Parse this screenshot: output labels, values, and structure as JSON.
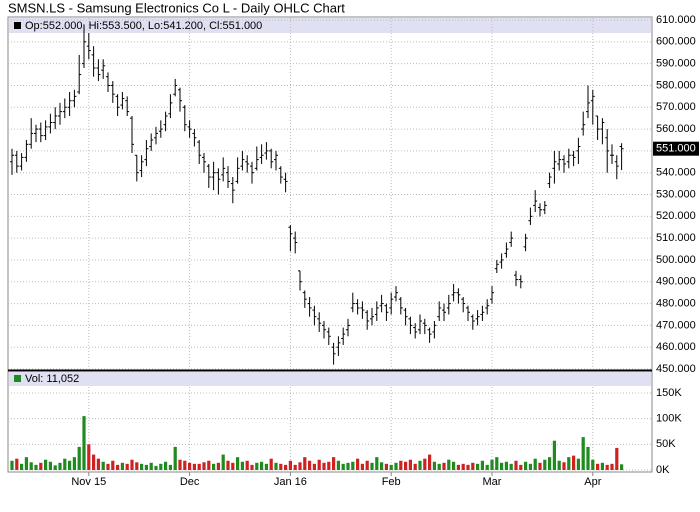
{
  "chart_data": {
    "type": "ohlc",
    "title": "SMSN.LS - Samsung Electronics Co L - Daily OHLC Chart",
    "ohlc_legend": "Op:552.000, Hi:553.500, Lo:541.200, Cl:551.000",
    "volume_legend": "Vol: 11,052",
    "last_price": {
      "value": 551,
      "label": "551.000"
    },
    "categories": [
      null,
      null,
      null,
      null,
      null,
      null,
      null,
      null,
      null,
      null,
      null,
      null,
      null,
      null,
      null,
      null,
      "Nov 15",
      null,
      null,
      null,
      null,
      null,
      null,
      null,
      null,
      null,
      null,
      null,
      null,
      null,
      null,
      null,
      null,
      null,
      null,
      null,
      null,
      "Dec",
      null,
      null,
      null,
      null,
      null,
      null,
      null,
      null,
      null,
      null,
      null,
      null,
      null,
      null,
      null,
      null,
      null,
      null,
      null,
      null,
      "Jan 16",
      null,
      null,
      null,
      null,
      null,
      null,
      null,
      null,
      null,
      null,
      null,
      null,
      null,
      null,
      null,
      null,
      null,
      null,
      null,
      null,
      "Feb",
      null,
      null,
      null,
      null,
      null,
      null,
      null,
      null,
      null,
      null,
      null,
      null,
      null,
      null,
      null,
      null,
      null,
      null,
      null,
      null,
      "Mar",
      null,
      null,
      null,
      null,
      null,
      null,
      null,
      null,
      null,
      null,
      null,
      null,
      null,
      null,
      null,
      null,
      null,
      null,
      null,
      null,
      "Apr",
      null,
      null,
      null,
      null,
      null,
      null
    ],
    "open": [
      545,
      548,
      543,
      547,
      553,
      558,
      560,
      557,
      561,
      563,
      566,
      568,
      570,
      573,
      577,
      590,
      598,
      594,
      588,
      587,
      584,
      580,
      575,
      571,
      573,
      565,
      548,
      541,
      546,
      552,
      556,
      559,
      562,
      567,
      576,
      578,
      570,
      561,
      558,
      554,
      547,
      543,
      538,
      540,
      539,
      540,
      535,
      536,
      543,
      545,
      543,
      542,
      547,
      549,
      550,
      546,
      542,
      537,
      515,
      510,
      495,
      485,
      480,
      477,
      473,
      470,
      467,
      460,
      460,
      464,
      468,
      478,
      480,
      478,
      476,
      473,
      475,
      479,
      479,
      478,
      483,
      482,
      477,
      473,
      469,
      468,
      471,
      468,
      467,
      474,
      477,
      478,
      484,
      485,
      482,
      478,
      474,
      473,
      475,
      478,
      482,
      496,
      499,
      503,
      508,
      493,
      491,
      506,
      518,
      525,
      524,
      523,
      535,
      542,
      544,
      546,
      545,
      548,
      550,
      560,
      568,
      573,
      566,
      560,
      556,
      548,
      545,
      552
    ],
    "high": [
      551,
      550,
      549,
      555,
      565,
      562,
      563,
      564,
      567,
      570,
      572,
      574,
      577,
      578,
      594,
      608,
      604,
      598,
      592,
      592,
      586,
      582,
      576,
      577,
      575,
      566,
      548,
      548,
      555,
      558,
      561,
      564,
      568,
      576,
      583,
      579,
      571,
      564,
      560,
      555,
      549,
      544,
      545,
      542,
      547,
      543,
      538,
      547,
      550,
      548,
      545,
      552,
      553,
      554,
      551,
      550,
      543,
      540,
      516,
      513,
      495,
      486,
      483,
      479,
      476,
      472,
      469,
      462,
      465,
      469,
      473,
      485,
      482,
      481,
      477,
      478,
      481,
      484,
      480,
      485,
      488,
      483,
      478,
      474,
      471,
      475,
      473,
      469,
      472,
      481,
      480,
      484,
      489,
      487,
      483,
      479,
      475,
      477,
      479,
      482,
      488,
      500,
      503,
      508,
      513,
      495,
      493,
      512,
      524,
      532,
      526,
      527,
      540,
      550,
      550,
      548,
      551,
      550,
      556,
      568,
      580,
      578,
      566,
      565,
      560,
      553,
      548,
      553.5
    ],
    "low": [
      539,
      540,
      541,
      545,
      551,
      554,
      554,
      555,
      558,
      560,
      562,
      565,
      566,
      570,
      576,
      588,
      592,
      584,
      582,
      583,
      577,
      572,
      566,
      569,
      566,
      549,
      536,
      538,
      543,
      550,
      553,
      556,
      559,
      565,
      575,
      568,
      559,
      556,
      552,
      544,
      540,
      533,
      532,
      530,
      536,
      533,
      526,
      535,
      541,
      540,
      535,
      541,
      544,
      546,
      542,
      541,
      535,
      531,
      504,
      503,
      486,
      478,
      474,
      470,
      467,
      464,
      461,
      452,
      456,
      461,
      465,
      476,
      475,
      473,
      468,
      470,
      472,
      476,
      472,
      475,
      481,
      475,
      470,
      466,
      464,
      466,
      466,
      462,
      464,
      472,
      472,
      475,
      481,
      480,
      476,
      472,
      468,
      470,
      472,
      475,
      480,
      494,
      496,
      501,
      506,
      488,
      487,
      504,
      516,
      522,
      520,
      521,
      533,
      535,
      541,
      540,
      542,
      543,
      544,
      557,
      565,
      562,
      555,
      553,
      540,
      544,
      537,
      541.2
    ],
    "close": [
      548,
      543,
      547,
      553,
      558,
      560,
      557,
      561,
      563,
      566,
      568,
      570,
      573,
      575,
      585,
      600,
      596,
      588,
      585,
      589,
      580,
      576,
      570,
      574,
      568,
      553,
      540,
      545,
      551,
      555,
      558,
      560,
      566,
      572,
      580,
      573,
      562,
      560,
      556,
      548,
      545,
      538,
      540,
      537,
      542,
      536,
      532,
      542,
      546,
      544,
      540,
      546,
      548,
      550,
      545,
      548,
      538,
      536,
      512,
      508,
      490,
      482,
      478,
      474,
      471,
      468,
      465,
      457,
      462,
      466,
      470,
      480,
      478,
      477,
      472,
      474,
      478,
      480,
      476,
      482,
      485,
      478,
      474,
      470,
      467,
      472,
      470,
      466,
      470,
      478,
      476,
      480,
      485,
      484,
      480,
      476,
      472,
      474,
      476,
      479,
      485,
      498,
      500,
      505,
      510,
      491,
      490,
      510,
      520,
      527,
      523,
      525,
      538,
      545,
      546,
      544,
      548,
      547,
      552,
      562,
      572,
      575,
      560,
      563,
      550,
      548,
      543,
      551
    ],
    "volume": [
      18000,
      22000,
      12000,
      25000,
      15000,
      10000,
      14000,
      20000,
      16000,
      9000,
      14000,
      22000,
      18000,
      25000,
      45000,
      105000,
      50000,
      30000,
      22000,
      16000,
      12000,
      18000,
      10000,
      14000,
      12000,
      20000,
      15000,
      12000,
      10000,
      14000,
      8000,
      12000,
      16000,
      10000,
      45000,
      20000,
      18000,
      14000,
      12000,
      12000,
      15000,
      18000,
      12000,
      14000,
      30000,
      18000,
      14000,
      25000,
      16000,
      18000,
      10000,
      14000,
      16000,
      12000,
      22000,
      14000,
      12000,
      10000,
      18000,
      10000,
      15000,
      25000,
      18000,
      12000,
      20000,
      14000,
      16000,
      25000,
      18000,
      12000,
      14000,
      16000,
      22000,
      12000,
      18000,
      14000,
      25000,
      15000,
      12000,
      10000,
      14000,
      18000,
      16000,
      20000,
      12000,
      18000,
      22000,
      30000,
      16000,
      12000,
      14000,
      20000,
      16000,
      10000,
      12000,
      10000,
      14000,
      12000,
      18000,
      10000,
      20000,
      25000,
      14000,
      16000,
      12000,
      18000,
      10000,
      16000,
      12000,
      22000,
      14000,
      20000,
      25000,
      57000,
      18000,
      15000,
      25000,
      28000,
      22000,
      64000,
      45000,
      20000,
      12000,
      14000,
      10000,
      12000,
      43000,
      11052
    ],
    "up_color": "#1f8a1f",
    "down_color": "#cc2222",
    "bar_color": "#000000",
    "grid": true,
    "ylim": [
      450,
      610
    ],
    "yticks": [
      {
        "value": 450,
        "label": "450.000"
      },
      {
        "value": 460,
        "label": "460.000"
      },
      {
        "value": 470,
        "label": "470.000"
      },
      {
        "value": 480,
        "label": "480.000"
      },
      {
        "value": 490,
        "label": "490.000"
      },
      {
        "value": 500,
        "label": "500.000"
      },
      {
        "value": 510,
        "label": "510.000"
      },
      {
        "value": 520,
        "label": "520.000"
      },
      {
        "value": 530,
        "label": "530.000"
      },
      {
        "value": 540,
        "label": "540.000"
      },
      {
        "value": 550,
        "label": "550.000"
      },
      {
        "value": 560,
        "label": "560.000"
      },
      {
        "value": 570,
        "label": "570.000"
      },
      {
        "value": 580,
        "label": "580.000"
      },
      {
        "value": 590,
        "label": "590.000"
      },
      {
        "value": 600,
        "label": "600.000"
      },
      {
        "value": 610,
        "label": "610.000"
      }
    ],
    "y2lim": [
      0,
      185000
    ],
    "y2ticks": [
      {
        "value": 0,
        "label": "0K"
      },
      {
        "value": 50000,
        "label": "50K"
      },
      {
        "value": 100000,
        "label": "100K"
      },
      {
        "value": 150000,
        "label": "150K"
      }
    ]
  }
}
